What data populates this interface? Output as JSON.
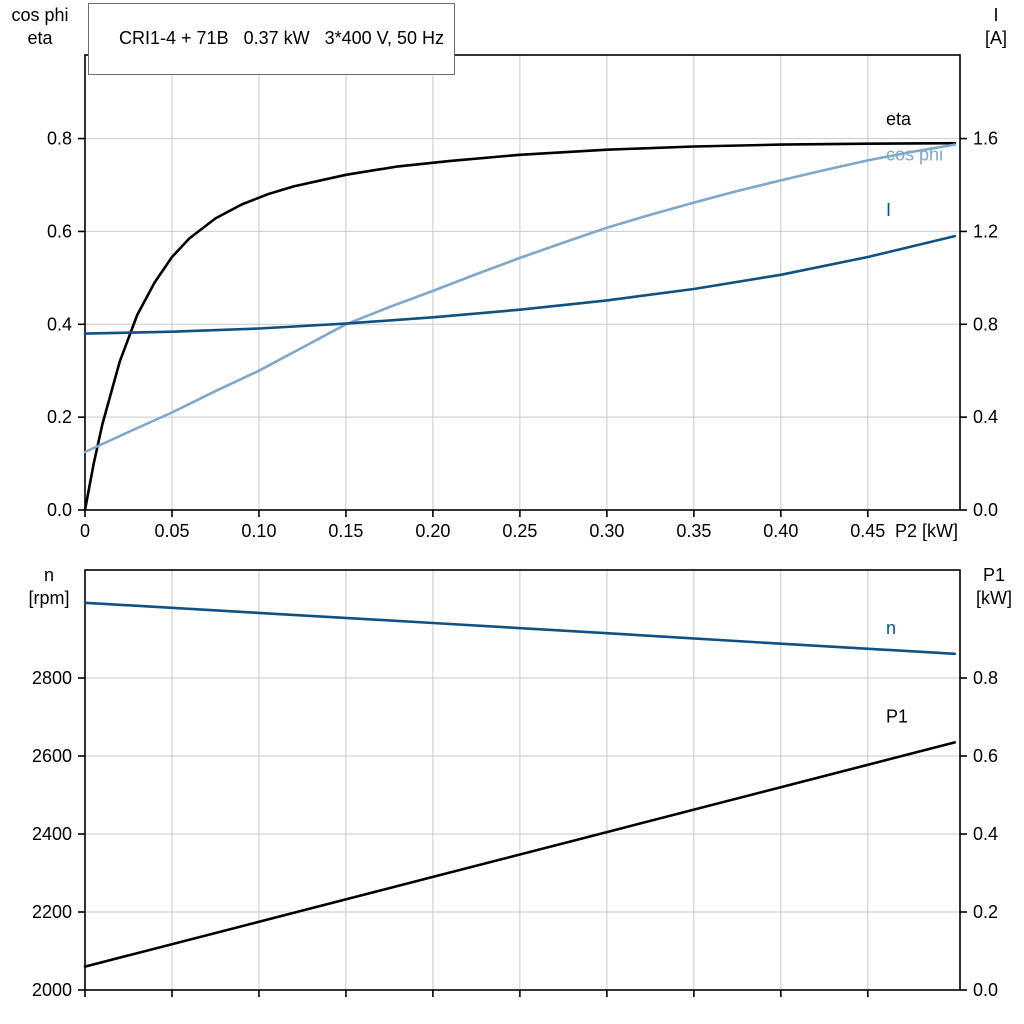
{
  "title_box": {
    "label": "CRI1-4 + 71B   0.37 kW   3*400 V, 50 Hz"
  },
  "colors": {
    "frame": "#000000",
    "grid": "#c9c9c9",
    "black": "#000000",
    "dark_blue": "#0f5180",
    "light_blue": "#7fa7cb"
  },
  "chart_data": [
    {
      "type": "line",
      "name": "motor-performance-top",
      "x_axis": {
        "lim": [
          0,
          0.503
        ],
        "ticks": [
          0,
          0.05,
          0.1,
          0.15,
          0.2,
          0.25,
          0.3,
          0.35,
          0.4,
          0.45
        ],
        "tick_labels": [
          "0",
          "0.05",
          "0.10",
          "0.15",
          "0.20",
          "0.25",
          "0.30",
          "0.35",
          "0.40",
          "0.45"
        ],
        "label": "P2 [kW]"
      },
      "y_left": {
        "corner_line1": "cos phi",
        "corner_line2": "eta",
        "lim": [
          0,
          0.98
        ],
        "ticks": [
          0.0,
          0.2,
          0.4,
          0.6,
          0.8
        ],
        "tick_labels": [
          "0.0",
          "0.2",
          "0.4",
          "0.6",
          "0.8"
        ]
      },
      "y_right": {
        "corner_line1": "I",
        "corner_line2": "[A]",
        "lim": [
          0,
          1.96
        ],
        "ticks": [
          0.0,
          0.4,
          0.8,
          1.2,
          1.6
        ],
        "tick_labels": [
          "0.0",
          "0.4",
          "0.8",
          "1.2",
          "1.6"
        ]
      },
      "series": [
        {
          "name": "eta",
          "label": "eta",
          "axis": "left",
          "color": "#000000",
          "label_dy": -18,
          "x": [
            0,
            0.005,
            0.01,
            0.02,
            0.03,
            0.04,
            0.05,
            0.06,
            0.075,
            0.09,
            0.105,
            0.12,
            0.15,
            0.18,
            0.21,
            0.25,
            0.3,
            0.35,
            0.4,
            0.45,
            0.5
          ],
          "y": [
            0,
            0.1,
            0.185,
            0.32,
            0.42,
            0.49,
            0.545,
            0.585,
            0.628,
            0.658,
            0.68,
            0.697,
            0.722,
            0.74,
            0.752,
            0.765,
            0.776,
            0.783,
            0.787,
            0.789,
            0.79
          ]
        },
        {
          "name": "cos-phi",
          "label": "cos phi",
          "axis": "left",
          "color": "#7fa7cb",
          "label_dy": 16,
          "x": [
            0,
            0.025,
            0.05,
            0.075,
            0.1,
            0.125,
            0.15,
            0.175,
            0.2,
            0.225,
            0.25,
            0.275,
            0.3,
            0.325,
            0.35,
            0.375,
            0.4,
            0.425,
            0.45,
            0.475,
            0.5
          ],
          "y": [
            0.125,
            0.168,
            0.21,
            0.256,
            0.3,
            0.35,
            0.4,
            0.437,
            0.472,
            0.508,
            0.543,
            0.576,
            0.608,
            0.636,
            0.662,
            0.687,
            0.71,
            0.732,
            0.753,
            0.771,
            0.787
          ]
        },
        {
          "name": "I",
          "label": "I",
          "axis": "right",
          "color": "#0f5180",
          "label_dy": -20,
          "x": [
            0,
            0.05,
            0.1,
            0.15,
            0.2,
            0.25,
            0.3,
            0.35,
            0.4,
            0.45,
            0.5
          ],
          "y": [
            0.76,
            0.768,
            0.782,
            0.803,
            0.83,
            0.863,
            0.903,
            0.952,
            1.013,
            1.09,
            1.18
          ]
        }
      ]
    },
    {
      "type": "line",
      "name": "motor-performance-bottom",
      "x_axis": {
        "lim": [
          0,
          0.503
        ],
        "ticks": [
          0,
          0.05,
          0.1,
          0.15,
          0.2,
          0.25,
          0.3,
          0.35,
          0.4,
          0.45
        ],
        "tick_labels": [],
        "label": ""
      },
      "y_left": {
        "corner_line1": "n",
        "corner_line2": "[rpm]",
        "lim": [
          2000,
          3077
        ],
        "ticks": [
          2000,
          2200,
          2400,
          2600,
          2800
        ],
        "tick_labels": [
          "2000",
          "2200",
          "2400",
          "2600",
          "2800"
        ]
      },
      "y_right": {
        "corner_line1": "P1",
        "corner_line2": "[kW]",
        "lim": [
          0,
          1.077
        ],
        "ticks": [
          0.0,
          0.2,
          0.4,
          0.6,
          0.8
        ],
        "tick_labels": [
          "0.0",
          "0.2",
          "0.4",
          "0.6",
          "0.8"
        ]
      },
      "series": [
        {
          "name": "n",
          "label": "n",
          "axis": "left",
          "color": "#0f5180",
          "label_dy": -20,
          "x": [
            0,
            0.1,
            0.2,
            0.3,
            0.4,
            0.5
          ],
          "y": [
            2993,
            2967,
            2941,
            2915,
            2888,
            2862
          ]
        },
        {
          "name": "P1",
          "label": "P1",
          "axis": "right",
          "color": "#000000",
          "label_dy": -20,
          "x": [
            0,
            0.1,
            0.2,
            0.3,
            0.4,
            0.5
          ],
          "y": [
            0.06,
            0.175,
            0.29,
            0.405,
            0.52,
            0.635
          ]
        }
      ]
    }
  ]
}
